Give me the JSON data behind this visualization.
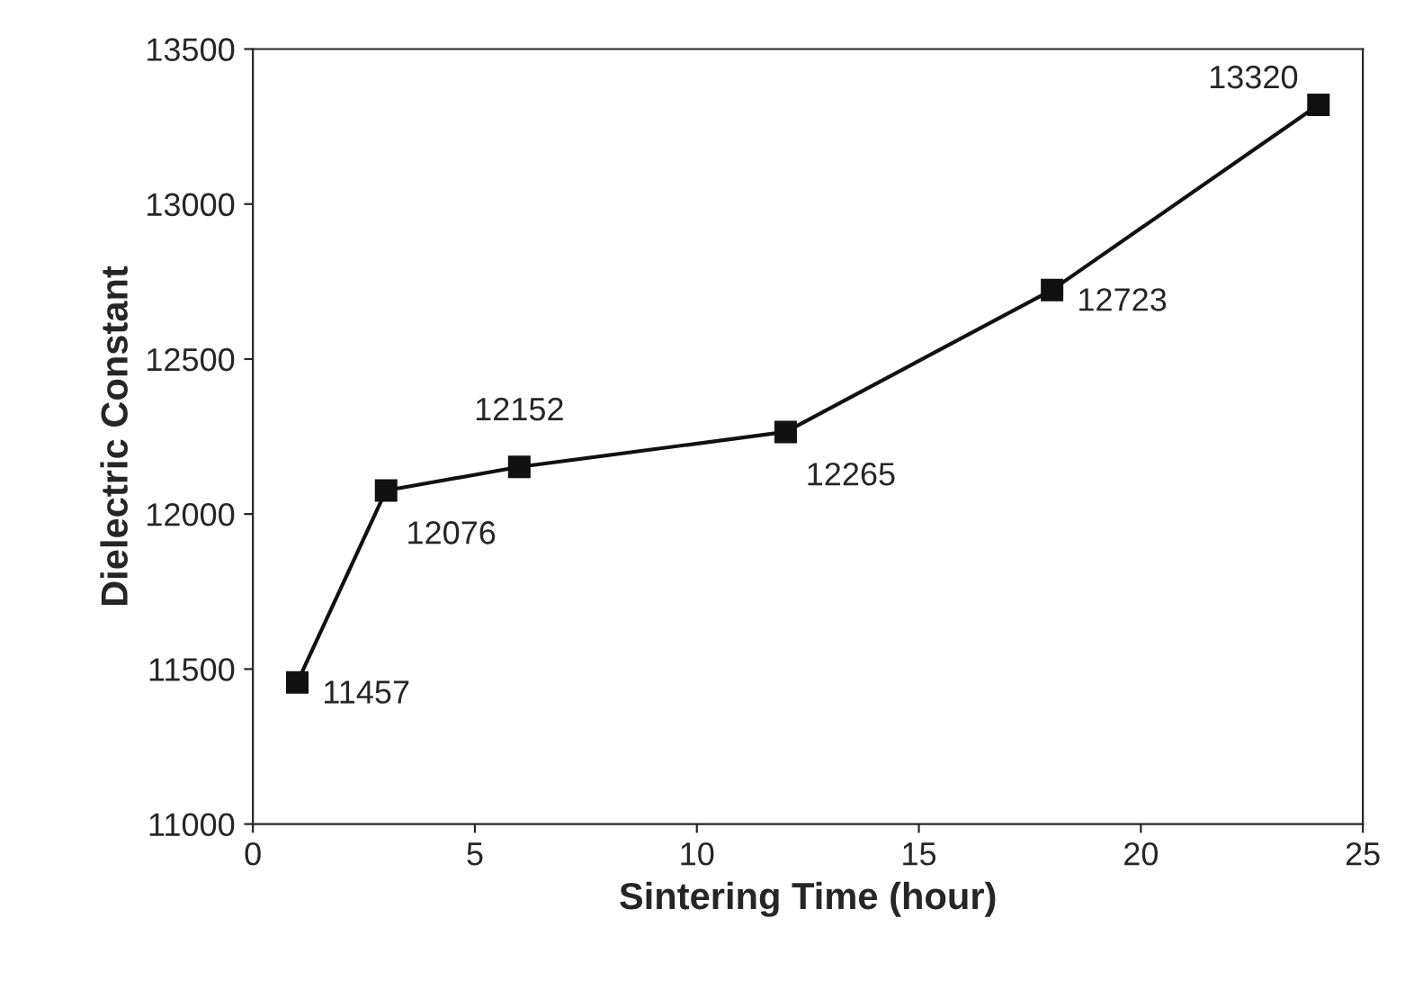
{
  "chart_data": {
    "type": "line",
    "xlabel": "Sintering Time (hour)",
    "ylabel": "Dielectric Constant",
    "x": [
      1,
      3,
      6,
      12,
      18,
      24
    ],
    "series": [
      {
        "color": "#111111",
        "values": [
          11457,
          12076,
          12152,
          12265,
          12723,
          13320
        ]
      }
    ],
    "xlim": [
      0,
      25
    ],
    "xticks": [
      0,
      5,
      10,
      15,
      20,
      25
    ],
    "ylim": [
      11000,
      13500
    ],
    "yticks": [
      11000,
      11500,
      12000,
      12500,
      13000,
      13500
    ],
    "data_labels": true,
    "marker": "square",
    "line_style": "solid",
    "grid": false,
    "legend": false
  }
}
